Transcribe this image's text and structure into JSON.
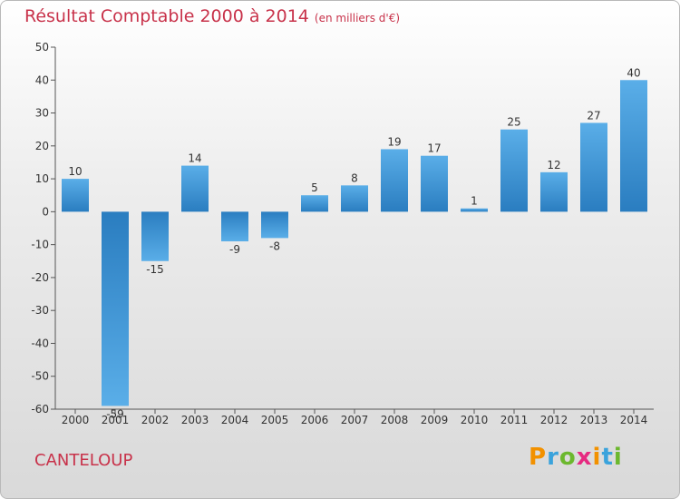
{
  "header": {
    "title": "Résultat Comptable 2000 à 2014",
    "unit": "(en milliers d'€)"
  },
  "footer": {
    "commune": "CANTELOUP",
    "brand": "Proxiti",
    "brand_colors": [
      "#f29100",
      "#3aa3dc",
      "#6cb82e",
      "#e62a81",
      "#f29100",
      "#3aa3dc",
      "#6cb82e"
    ]
  },
  "colors": {
    "title": "#c8324a",
    "bar_top": "#5aaee8",
    "bar_bottom": "#2a7dc0"
  },
  "chart_data": {
    "type": "bar",
    "categories": [
      "2000",
      "2001",
      "2002",
      "2003",
      "2004",
      "2005",
      "2006",
      "2007",
      "2008",
      "2009",
      "2010",
      "2011",
      "2012",
      "2013",
      "2014"
    ],
    "values": [
      10,
      -59,
      -15,
      14,
      -9,
      -8,
      5,
      8,
      19,
      17,
      1,
      25,
      12,
      27,
      40
    ],
    "ylim": [
      -60,
      50
    ],
    "yticks": [
      -60,
      -50,
      -40,
      -30,
      -20,
      -10,
      0,
      10,
      20,
      30,
      40,
      50
    ],
    "grid": false,
    "legend": "none"
  }
}
